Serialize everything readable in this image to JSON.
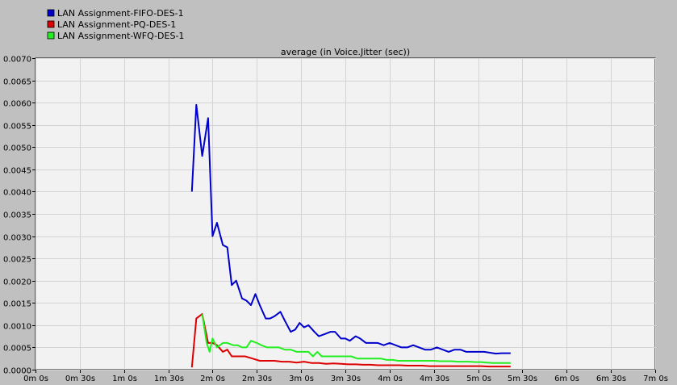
{
  "chart_data": {
    "type": "line",
    "title": "average (in Voice.Jitter (sec))",
    "xlabel": "",
    "ylabel": "",
    "xlim": [
      0,
      420
    ],
    "ylim": [
      0,
      0.007
    ],
    "x_ticks": [
      {
        "value": 0,
        "label": "0m 0s"
      },
      {
        "value": 30,
        "label": "0m 30s"
      },
      {
        "value": 60,
        "label": "1m 0s"
      },
      {
        "value": 90,
        "label": "1m 30s"
      },
      {
        "value": 120,
        "label": "2m 0s"
      },
      {
        "value": 150,
        "label": "2m 30s"
      },
      {
        "value": 180,
        "label": "3m 0s"
      },
      {
        "value": 210,
        "label": "3m 30s"
      },
      {
        "value": 240,
        "label": "4m 0s"
      },
      {
        "value": 270,
        "label": "4m 30s"
      },
      {
        "value": 300,
        "label": "5m 0s"
      },
      {
        "value": 330,
        "label": "5m 30s"
      },
      {
        "value": 360,
        "label": "6m 0s"
      },
      {
        "value": 390,
        "label": "6m 30s"
      },
      {
        "value": 420,
        "label": "7m 0s"
      }
    ],
    "y_ticks": [
      {
        "value": 0.0,
        "label": "0.0000"
      },
      {
        "value": 0.0005,
        "label": "0.0005"
      },
      {
        "value": 0.001,
        "label": "0.0010"
      },
      {
        "value": 0.0015,
        "label": "0.0015"
      },
      {
        "value": 0.002,
        "label": "0.0020"
      },
      {
        "value": 0.0025,
        "label": "0.0025"
      },
      {
        "value": 0.003,
        "label": "0.0030"
      },
      {
        "value": 0.0035,
        "label": "0.0035"
      },
      {
        "value": 0.004,
        "label": "0.0040"
      },
      {
        "value": 0.0045,
        "label": "0.0045"
      },
      {
        "value": 0.005,
        "label": "0.0050"
      },
      {
        "value": 0.0055,
        "label": "0.0055"
      },
      {
        "value": 0.006,
        "label": "0.0060"
      },
      {
        "value": 0.0065,
        "label": "0.0065"
      },
      {
        "value": 0.007,
        "label": "0.0070"
      }
    ],
    "grid": true,
    "legend_position": "top-left",
    "series": [
      {
        "name": "LAN Assignment-FIFO-DES-1",
        "color": "#0000cc",
        "points": [
          [
            106,
            0.004
          ],
          [
            109,
            0.00595
          ],
          [
            113,
            0.0048
          ],
          [
            117,
            0.00565
          ],
          [
            120,
            0.003
          ],
          [
            123,
            0.0033
          ],
          [
            127,
            0.0028
          ],
          [
            130,
            0.00275
          ],
          [
            133,
            0.0019
          ],
          [
            136,
            0.002
          ],
          [
            140,
            0.0016
          ],
          [
            143,
            0.00155
          ],
          [
            146,
            0.00145
          ],
          [
            149,
            0.0017
          ],
          [
            152,
            0.00145
          ],
          [
            156,
            0.00115
          ],
          [
            159,
            0.00115
          ],
          [
            162,
            0.0012
          ],
          [
            166,
            0.0013
          ],
          [
            169,
            0.0011
          ],
          [
            173,
            0.00085
          ],
          [
            176,
            0.0009
          ],
          [
            179,
            0.00105
          ],
          [
            182,
            0.00095
          ],
          [
            185,
            0.001
          ],
          [
            189,
            0.00085
          ],
          [
            192,
            0.00075
          ],
          [
            196,
            0.0008
          ],
          [
            200,
            0.00085
          ],
          [
            203,
            0.00085
          ],
          [
            207,
            0.0007
          ],
          [
            210,
            0.0007
          ],
          [
            213,
            0.00065
          ],
          [
            217,
            0.00075
          ],
          [
            220,
            0.0007
          ],
          [
            224,
            0.0006
          ],
          [
            228,
            0.0006
          ],
          [
            232,
            0.0006
          ],
          [
            236,
            0.00055
          ],
          [
            240,
            0.0006
          ],
          [
            244,
            0.00055
          ],
          [
            248,
            0.0005
          ],
          [
            252,
            0.0005
          ],
          [
            256,
            0.00055
          ],
          [
            260,
            0.0005
          ],
          [
            264,
            0.00045
          ],
          [
            268,
            0.00045
          ],
          [
            272,
            0.0005
          ],
          [
            276,
            0.00045
          ],
          [
            280,
            0.0004
          ],
          [
            284,
            0.00045
          ],
          [
            288,
            0.00045
          ],
          [
            292,
            0.0004
          ],
          [
            296,
            0.0004
          ],
          [
            300,
            0.0004
          ],
          [
            304,
            0.0004
          ],
          [
            308,
            0.00038
          ],
          [
            312,
            0.00036
          ],
          [
            316,
            0.00037
          ],
          [
            322,
            0.00037
          ]
        ]
      },
      {
        "name": "LAN Assignment-PQ-DES-1",
        "color": "#dd0000",
        "points": [
          [
            106,
            5e-05
          ],
          [
            109,
            0.00115
          ],
          [
            113,
            0.00125
          ],
          [
            117,
            0.0006
          ],
          [
            120,
            0.0006
          ],
          [
            123,
            0.00055
          ],
          [
            127,
            0.0004
          ],
          [
            130,
            0.00045
          ],
          [
            133,
            0.0003
          ],
          [
            137,
            0.0003
          ],
          [
            142,
            0.0003
          ],
          [
            147,
            0.00025
          ],
          [
            152,
            0.0002
          ],
          [
            157,
            0.0002
          ],
          [
            162,
            0.0002
          ],
          [
            167,
            0.00018
          ],
          [
            172,
            0.00018
          ],
          [
            177,
            0.00016
          ],
          [
            182,
            0.00018
          ],
          [
            187,
            0.00015
          ],
          [
            192,
            0.00015
          ],
          [
            197,
            0.00013
          ],
          [
            202,
            0.00014
          ],
          [
            207,
            0.00013
          ],
          [
            212,
            0.00012
          ],
          [
            217,
            0.00012
          ],
          [
            222,
            0.00011
          ],
          [
            227,
            0.00011
          ],
          [
            232,
            0.0001
          ],
          [
            237,
            0.0001
          ],
          [
            242,
            0.0001
          ],
          [
            247,
            0.0001
          ],
          [
            252,
            9e-05
          ],
          [
            257,
            9e-05
          ],
          [
            262,
            9e-05
          ],
          [
            267,
            8e-05
          ],
          [
            272,
            8e-05
          ],
          [
            277,
            8e-05
          ],
          [
            282,
            8e-05
          ],
          [
            287,
            8e-05
          ],
          [
            292,
            8e-05
          ],
          [
            297,
            8e-05
          ],
          [
            302,
            8e-05
          ],
          [
            307,
            7e-05
          ],
          [
            312,
            7e-05
          ],
          [
            317,
            7e-05
          ],
          [
            322,
            7e-05
          ]
        ]
      },
      {
        "name": "LAN Assignment-WFQ-DES-1",
        "color": "#22ee22",
        "points": [
          [
            113,
            0.00125
          ],
          [
            116,
            0.0006
          ],
          [
            118,
            0.0004
          ],
          [
            120,
            0.0007
          ],
          [
            123,
            0.0005
          ],
          [
            127,
            0.0006
          ],
          [
            130,
            0.0006
          ],
          [
            134,
            0.00055
          ],
          [
            137,
            0.00055
          ],
          [
            140,
            0.0005
          ],
          [
            143,
            0.0005
          ],
          [
            146,
            0.00065
          ],
          [
            150,
            0.0006
          ],
          [
            153,
            0.00055
          ],
          [
            157,
            0.0005
          ],
          [
            161,
            0.0005
          ],
          [
            165,
            0.0005
          ],
          [
            169,
            0.00045
          ],
          [
            173,
            0.00045
          ],
          [
            177,
            0.0004
          ],
          [
            181,
            0.0004
          ],
          [
            185,
            0.0004
          ],
          [
            188,
            0.0003
          ],
          [
            191,
            0.0004
          ],
          [
            194,
            0.0003
          ],
          [
            198,
            0.0003
          ],
          [
            202,
            0.0003
          ],
          [
            206,
            0.0003
          ],
          [
            210,
            0.0003
          ],
          [
            214,
            0.0003
          ],
          [
            218,
            0.00025
          ],
          [
            222,
            0.00025
          ],
          [
            226,
            0.00025
          ],
          [
            230,
            0.00025
          ],
          [
            234,
            0.00025
          ],
          [
            238,
            0.00022
          ],
          [
            242,
            0.00022
          ],
          [
            246,
            0.0002
          ],
          [
            250,
            0.0002
          ],
          [
            254,
            0.0002
          ],
          [
            258,
            0.0002
          ],
          [
            262,
            0.0002
          ],
          [
            266,
            0.0002
          ],
          [
            270,
            0.0002
          ],
          [
            274,
            0.00019
          ],
          [
            278,
            0.00019
          ],
          [
            282,
            0.00019
          ],
          [
            286,
            0.00018
          ],
          [
            290,
            0.00018
          ],
          [
            294,
            0.00018
          ],
          [
            298,
            0.00017
          ],
          [
            302,
            0.00017
          ],
          [
            306,
            0.00016
          ],
          [
            310,
            0.00015
          ],
          [
            316,
            0.00015
          ],
          [
            322,
            0.00015
          ]
        ]
      }
    ]
  }
}
